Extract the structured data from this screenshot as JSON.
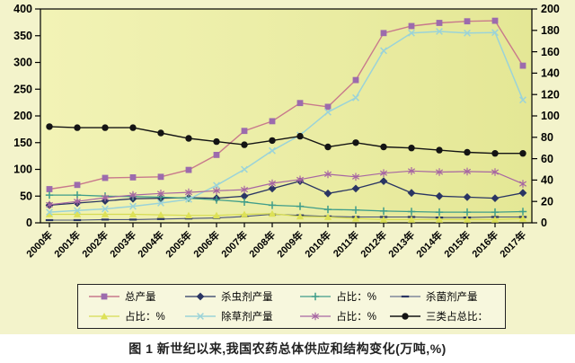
{
  "figure": {
    "caption": "图 1  新世纪以来,我国农药总体供应和结构变化(万吨,%)"
  },
  "chart_data": {
    "type": "line",
    "x_categories": [
      "2000年",
      "2001年",
      "2002年",
      "2003年",
      "2004年",
      "2005年",
      "2006年",
      "2007年",
      "2008年",
      "2009年",
      "2010年",
      "2011年",
      "2012年",
      "2013年",
      "2014年",
      "2015年",
      "2016年",
      "2017年"
    ],
    "left_axis": {
      "min": 0,
      "max": 400,
      "ticks": [
        400,
        350,
        300,
        250,
        200,
        150,
        100,
        50,
        0
      ],
      "unit": "万吨"
    },
    "right_axis": {
      "min": 0,
      "max": 200,
      "ticks": [
        200,
        180,
        160,
        140,
        120,
        100,
        80,
        60,
        40,
        20,
        0
      ],
      "unit": "%"
    },
    "grid": false,
    "legend_position": "bottom-box",
    "plot_background": {
      "from": "#f2f3b6",
      "to": "#e4e795"
    },
    "page_background": "#f3f3cb",
    "series": [
      {
        "id": "total-output",
        "label": "总产量",
        "marker": "square",
        "axis": "left",
        "color": "#9c6bad",
        "line_color": "#c8798c",
        "line_width": 1.4,
        "values": [
          63,
          71,
          84,
          85,
          86,
          99,
          127,
          172,
          190,
          224,
          217,
          267,
          355,
          368,
          374,
          377,
          378,
          294
        ]
      },
      {
        "id": "insecticide-output",
        "label": "杀虫剂产量",
        "marker": "diamond",
        "axis": "left",
        "color": "#2a3563",
        "line_color": "#2a3563",
        "line_width": 1.3,
        "values": [
          33,
          37,
          41,
          45,
          46,
          47,
          46,
          50,
          64,
          78,
          55,
          64,
          78,
          56,
          50,
          48,
          46,
          56
        ]
      },
      {
        "id": "insecticide-share",
        "label": "占比：%",
        "marker": "plus",
        "axis": "right",
        "color": "#3f9d8a",
        "line_color": "#3f9d8a",
        "line_width": 1.3,
        "values": [
          26,
          26,
          25,
          24.5,
          24,
          23,
          21.5,
          19.5,
          16.5,
          15.5,
          12.5,
          12,
          11,
          10.5,
          10,
          10,
          10,
          10.5
        ]
      },
      {
        "id": "fungicide-output",
        "label": "杀菌剂产量",
        "marker": "dash",
        "axis": "left",
        "color": "#2a3563",
        "line_color": "#46507a",
        "line_width": 1.1,
        "values": [
          5,
          5,
          6,
          6,
          7,
          8,
          9,
          12,
          16,
          14,
          12,
          11,
          11,
          11,
          10,
          10,
          11,
          11
        ]
      },
      {
        "id": "fungicide-share",
        "label": "占比：%",
        "marker": "triangle",
        "axis": "right",
        "color": "#dde157",
        "line_color": "#d6dc52",
        "line_width": 1.2,
        "values": [
          8,
          8,
          8,
          8,
          7.5,
          7,
          7,
          8,
          8.5,
          6,
          5.5,
          4,
          3,
          3,
          3,
          3,
          3,
          4
        ]
      },
      {
        "id": "herbicide-output",
        "label": "除草剂产量",
        "marker": "x",
        "axis": "right",
        "color": "#9bd3d8",
        "line_color": "#9bd3d8",
        "line_width": 1.5,
        "values": [
          10,
          11.5,
          13,
          15.5,
          18.5,
          22,
          35,
          50,
          67.5,
          82,
          103.5,
          117,
          161,
          177.5,
          179,
          177.5,
          178,
          115
        ]
      },
      {
        "id": "herbicide-share",
        "label": "占比：%",
        "marker": "asterisk",
        "axis": "right",
        "color": "#a766a2",
        "line_color": "#a766a2",
        "line_width": 1.2,
        "values": [
          17,
          20,
          23.5,
          26,
          27.5,
          28.5,
          30,
          31,
          37,
          40.5,
          45.5,
          43,
          46.5,
          48.5,
          47.5,
          48,
          47.5,
          36.5
        ]
      },
      {
        "id": "three-category-share",
        "label": "三类占总比：",
        "marker": "circle",
        "axis": "right",
        "color": "#141414",
        "line_color": "#141414",
        "line_width": 1.4,
        "values": [
          90,
          89,
          89,
          89,
          84,
          79,
          76,
          73,
          77,
          81,
          71,
          75,
          71,
          70,
          68,
          66,
          65,
          65
        ]
      }
    ]
  }
}
